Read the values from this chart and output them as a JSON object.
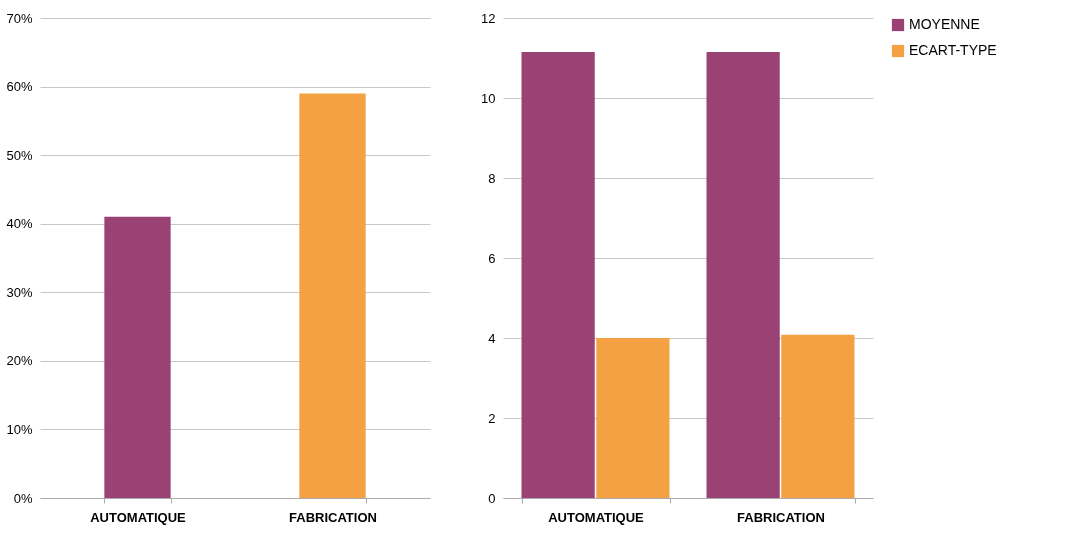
{
  "chart_data": [
    {
      "type": "bar",
      "categories": [
        "AUTOMATIQUE",
        "FABRICATION"
      ],
      "values": [
        41,
        59
      ],
      "colors": [
        "#9b4274",
        "#f4a144"
      ],
      "ylim": [
        0,
        70
      ],
      "yticks": [
        {
          "value": 0,
          "label": "0%"
        },
        {
          "value": 10,
          "label": "10%"
        },
        {
          "value": 20,
          "label": "20%"
        },
        {
          "value": 30,
          "label": "30%"
        },
        {
          "value": 40,
          "label": "40%"
        },
        {
          "value": 50,
          "label": "50%"
        },
        {
          "value": 60,
          "label": "60%"
        },
        {
          "value": 70,
          "label": "70%"
        }
      ],
      "grid": "y"
    },
    {
      "type": "bar",
      "categories": [
        "AUTOMATIQUE",
        "FABRICATION"
      ],
      "series": [
        {
          "name": "MOYENNE",
          "color": "#9b4274",
          "values": [
            11.15,
            11.15
          ]
        },
        {
          "name": "ECART-TYPE",
          "color": "#f4a144",
          "values": [
            4.0,
            4.08
          ]
        }
      ],
      "ylim": [
        0,
        12
      ],
      "yticks": [
        0,
        2,
        4,
        6,
        8,
        10,
        12
      ],
      "grid": "y",
      "legend": "right"
    }
  ]
}
